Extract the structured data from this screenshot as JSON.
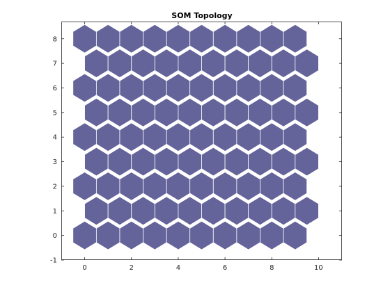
{
  "chart_data": {
    "type": "heatmap",
    "subtype": "som-hexagonal-topology",
    "title": "SOM Topology",
    "xlabel": "",
    "ylabel": "",
    "xlim": [
      -1,
      11
    ],
    "ylim": [
      -1,
      8.7
    ],
    "xticks": [
      0,
      2,
      4,
      6,
      8,
      10
    ],
    "yticks": [
      -1,
      0,
      1,
      2,
      3,
      4,
      5,
      6,
      7,
      8
    ],
    "grid": false,
    "legend": "none",
    "grid_columns": 10,
    "grid_rows": 9,
    "odd_row_offset": 0.5,
    "cell_fill_color": "#64639a",
    "cell_edge_color": "#ffffff",
    "neurons": [
      {
        "row": 0,
        "x": [
          0,
          1,
          2,
          3,
          4,
          5,
          6,
          7,
          8,
          9
        ],
        "y": 0
      },
      {
        "row": 1,
        "x": [
          0.5,
          1.5,
          2.5,
          3.5,
          4.5,
          5.5,
          6.5,
          7.5,
          8.5,
          9.5
        ],
        "y": 1
      },
      {
        "row": 2,
        "x": [
          0,
          1,
          2,
          3,
          4,
          5,
          6,
          7,
          8,
          9
        ],
        "y": 2
      },
      {
        "row": 3,
        "x": [
          0.5,
          1.5,
          2.5,
          3.5,
          4.5,
          5.5,
          6.5,
          7.5,
          8.5,
          9.5
        ],
        "y": 3
      },
      {
        "row": 4,
        "x": [
          0,
          1,
          2,
          3,
          4,
          5,
          6,
          7,
          8,
          9
        ],
        "y": 4
      },
      {
        "row": 5,
        "x": [
          0.5,
          1.5,
          2.5,
          3.5,
          4.5,
          5.5,
          6.5,
          7.5,
          8.5,
          9.5
        ],
        "y": 5
      },
      {
        "row": 6,
        "x": [
          0,
          1,
          2,
          3,
          4,
          5,
          6,
          7,
          8,
          9
        ],
        "y": 6
      },
      {
        "row": 7,
        "x": [
          0.5,
          1.5,
          2.5,
          3.5,
          4.5,
          5.5,
          6.5,
          7.5,
          8.5,
          9.5
        ],
        "y": 7
      },
      {
        "row": 8,
        "x": [
          0,
          1,
          2,
          3,
          4,
          5,
          6,
          7,
          8,
          9
        ],
        "y": 8
      }
    ]
  },
  "colors": {
    "axis_line": "#262626",
    "background": "#ffffff"
  }
}
